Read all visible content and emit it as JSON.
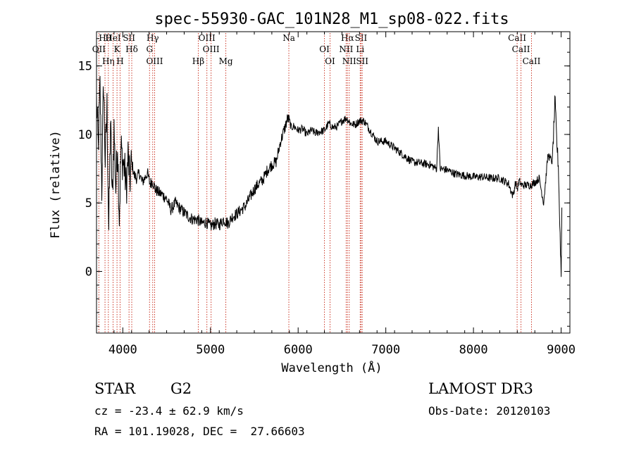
{
  "chart_data": {
    "type": "line",
    "title": "spec-55930-GAC_101N28_M1_sp08-022.fits",
    "xlabel": "Wavelength (Å)",
    "ylabel": "Flux (relative)",
    "xlim": [
      3700,
      9100
    ],
    "ylim": [
      -4.5,
      17.5
    ],
    "x_ticks": [
      4000,
      5000,
      6000,
      7000,
      8000,
      9000
    ],
    "x_tick_labels": [
      "4000",
      "5000",
      "6000",
      "7000",
      "8000",
      "9000"
    ],
    "y_ticks": [
      0,
      5,
      10,
      15
    ],
    "y_tick_labels": [
      "0",
      "5",
      "10",
      "15"
    ],
    "series": [
      {
        "name": "flux",
        "x": [
          3700,
          3720,
          3740,
          3760,
          3780,
          3800,
          3820,
          3840,
          3860,
          3880,
          3900,
          3920,
          3940,
          3960,
          3980,
          4000,
          4020,
          4040,
          4060,
          4080,
          4100,
          4130,
          4160,
          4190,
          4220,
          4250,
          4280,
          4310,
          4340,
          4370,
          4400,
          4450,
          4500,
          4550,
          4600,
          4650,
          4700,
          4750,
          4800,
          4850,
          4900,
          4950,
          5000,
          5050,
          5100,
          5150,
          5200,
          5250,
          5300,
          5350,
          5400,
          5450,
          5500,
          5550,
          5600,
          5650,
          5700,
          5750,
          5800,
          5850,
          5880,
          5900,
          5920,
          5950,
          6000,
          6050,
          6100,
          6150,
          6200,
          6250,
          6300,
          6350,
          6400,
          6450,
          6500,
          6550,
          6600,
          6650,
          6700,
          6750,
          6800,
          6900,
          7000,
          7100,
          7200,
          7300,
          7400,
          7500,
          7580,
          7600,
          7620,
          7700,
          7800,
          7900,
          8000,
          8100,
          8200,
          8300,
          8400,
          8450,
          8480,
          8500,
          8520,
          8550,
          8600,
          8650,
          8700,
          8750,
          8800,
          8850,
          8900,
          8930,
          8950,
          8970,
          8980,
          9000,
          9010
        ],
        "values": [
          12.5,
          9,
          13.5,
          6,
          14,
          8,
          12,
          3,
          11,
          5,
          10.5,
          6,
          9.5,
          4,
          9,
          8,
          7.5,
          6,
          8.5,
          6.5,
          8,
          7,
          6.8,
          7.2,
          6.5,
          6.8,
          7.2,
          6.4,
          6.6,
          6,
          5.8,
          5.6,
          5.3,
          4.5,
          5,
          4.6,
          4.3,
          4,
          3.8,
          3.8,
          3.5,
          3.6,
          3.3,
          3.5,
          3.4,
          3.8,
          3.5,
          4,
          4.2,
          4.5,
          4.8,
          5.4,
          6,
          6.4,
          6.7,
          7.4,
          7.8,
          8,
          9.5,
          10.5,
          11.2,
          11,
          10.5,
          10.6,
          10.3,
          10.4,
          10,
          10.3,
          10.1,
          10.2,
          10.3,
          10.8,
          10.5,
          10.6,
          11,
          11.2,
          10.8,
          10.7,
          11,
          11,
          10.5,
          9.5,
          9.5,
          9,
          8.5,
          8,
          7.9,
          7.8,
          7.5,
          10.5,
          7.5,
          7.4,
          7.1,
          7,
          6.9,
          6.9,
          6.8,
          6.8,
          6.4,
          5.5,
          6.5,
          6,
          6.6,
          6.3,
          6.3,
          6.3,
          6.5,
          6.8,
          5,
          8.5,
          8,
          12.5,
          9.5,
          7.5,
          4.5,
          -0.2,
          6
        ]
      }
    ],
    "lines": [
      {
        "label": "Hθ",
        "wave": 3797
      },
      {
        "label": "OII",
        "wave": 3727
      },
      {
        "label": "Hη",
        "wave": 3835
      },
      {
        "label": "HeI",
        "wave": 3889
      },
      {
        "label": "K",
        "wave": 3934
      },
      {
        "label": "H",
        "wave": 3969
      },
      {
        "label": "SII",
        "wave": 4071
      },
      {
        "label": "Hδ",
        "wave": 4102
      },
      {
        "label": "OIII",
        "wave": 4363
      },
      {
        "label": "Hγ",
        "wave": 4341
      },
      {
        "label": "G",
        "wave": 4305
      },
      {
        "label": "Hβ",
        "wave": 4861
      },
      {
        "label": "OIII",
        "wave": 4959
      },
      {
        "label": "OIII",
        "wave": 5007
      },
      {
        "label": "Mg",
        "wave": 5175
      },
      {
        "label": "Na",
        "wave": 5894
      },
      {
        "label": "OI",
        "wave": 6300
      },
      {
        "label": "OI",
        "wave": 6364
      },
      {
        "label": "Hα",
        "wave": 6563
      },
      {
        "label": "NII",
        "wave": 6548
      },
      {
        "label": "NII",
        "wave": 6583
      },
      {
        "label": "SII",
        "wave": 6717
      },
      {
        "label": "Li",
        "wave": 6708
      },
      {
        "label": "SII",
        "wave": 6731
      },
      {
        "label": "CaII",
        "wave": 8498
      },
      {
        "label": "CaII",
        "wave": 8542
      },
      {
        "label": "CaII",
        "wave": 8662
      }
    ]
  },
  "info": {
    "object_class": "STAR",
    "subclass": "G2",
    "survey": "LAMOST DR3",
    "redshift": "cz = -23.4 ± 62.9 km/s",
    "obs_date": "Obs-Date: 20120103",
    "coords": "RA = 101.19028, DEC =  27.66603"
  }
}
